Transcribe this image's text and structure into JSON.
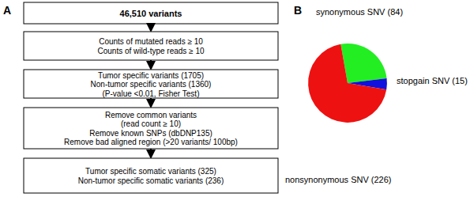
{
  "flowchart": {
    "label": "A",
    "boxes": [
      [
        "46,510 variants"
      ],
      [
        "Counts of mutated reads ≥ 10",
        "Counts of wild-type reads ≥ 10"
      ],
      [
        "Tumor specific variants (1705)",
        "Non-tumor specific variants (1360)",
        "(P-value <0.01, Fisher Test)"
      ],
      [
        "Remove common variants",
        "(read count  ≥ 10)",
        "Remove known SNPs (dbDNP135)",
        "Remove bad aligned region (>20 variants/ 100bp)"
      ],
      [
        "Tumor specific somatic variants (325)",
        "Non-tumor specific somatic variants (236)"
      ]
    ]
  },
  "chart_data": {
    "type": "pie",
    "label": "B",
    "categories": [
      "synonymous SNV (84)",
      "stopgain SNV (15)",
      "nonsynonymous SNV (226)"
    ],
    "values": [
      84,
      15,
      226
    ],
    "colors": [
      "#22ee22",
      "#1111dd",
      "#ee1111"
    ]
  }
}
